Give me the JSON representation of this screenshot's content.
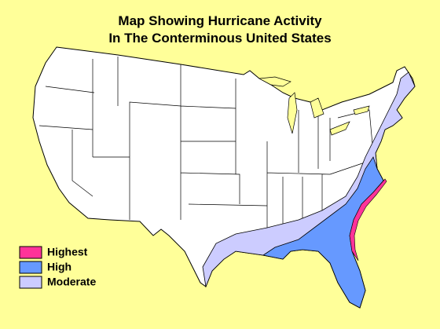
{
  "title": [
    "Map Showing Hurricane Activity",
    "In The Conterminous United States"
  ],
  "legend": [
    {
      "label": "Highest",
      "color": "#ff3399"
    },
    {
      "label": "High",
      "color": "#6699ff"
    },
    {
      "label": "Moderate",
      "color": "#ccccff"
    }
  ]
}
